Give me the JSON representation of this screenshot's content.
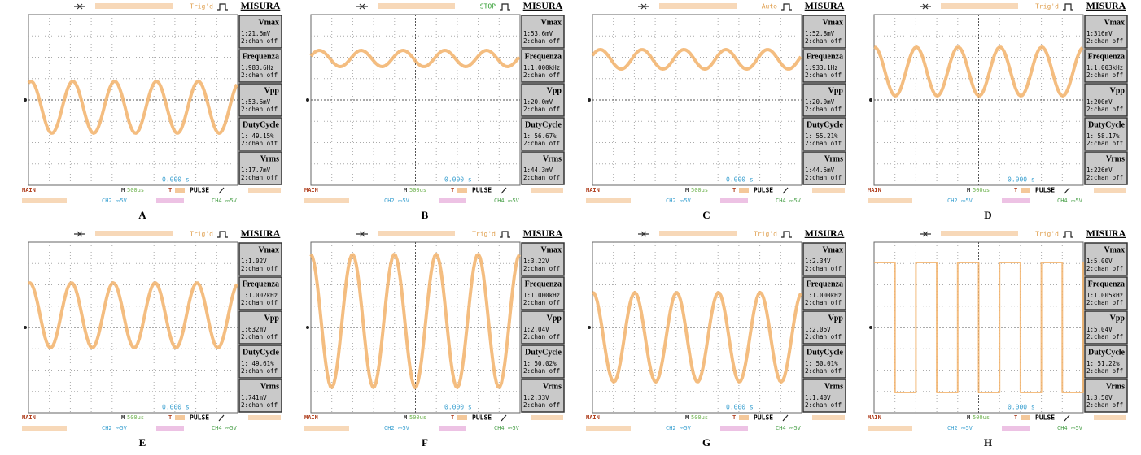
{
  "panels": [
    {
      "label": "A",
      "status": "Trig'd",
      "heading": "MISURA",
      "time": "0.000 s",
      "main": "MAIN",
      "timebase_icon": "M",
      "timebase": "500us",
      "trigger": "T",
      "trigger_mode": "PULSE",
      "ch2": "CH2 ⎓5V",
      "ch4": "CH4 ⎓5V",
      "measurements": [
        {
          "name": "Vmax",
          "ch1": "1:21.6mV",
          "ch2": "2:chan off"
        },
        {
          "name": "Frequenza",
          "ch1": "1:983.6Hz",
          "ch2": "2:chan off"
        },
        {
          "name": "Vpp",
          "ch1": "1:53.6mV",
          "ch2": "2:chan off"
        },
        {
          "name": "DutyCycle",
          "ch1": "1: 49.15%",
          "ch2": "2:chan off"
        },
        {
          "name": "Vrms",
          "ch1": "1:17.7mV",
          "ch2": "2:chan off"
        }
      ]
    },
    {
      "label": "B",
      "status": "STOP",
      "heading": "MISURA",
      "time": "0.000 s",
      "main": "MAIN",
      "timebase_icon": "M",
      "timebase": "500us",
      "trigger": "T",
      "trigger_mode": "PULSE",
      "ch2": "CH2 ⎓5V",
      "ch4": "CH4 ⎓5V",
      "measurements": [
        {
          "name": "Vmax",
          "ch1": "1:53.6mV",
          "ch2": "2:chan off"
        },
        {
          "name": "Frequenza",
          "ch1": "1:1.000kHz",
          "ch2": "2:chan off"
        },
        {
          "name": "Vpp",
          "ch1": "1:20.0mV",
          "ch2": "2:chan off"
        },
        {
          "name": "DutyCycle",
          "ch1": "1: 56.67%",
          "ch2": "2:chan off"
        },
        {
          "name": "Vrms",
          "ch1": "1:44.3mV",
          "ch2": "2:chan off"
        }
      ]
    },
    {
      "label": "C",
      "status": "Auto",
      "heading": "MISURA",
      "time": "0.000 s",
      "main": "MAIN",
      "timebase_icon": "M",
      "timebase": "500us",
      "trigger": "T",
      "trigger_mode": "PULSE",
      "ch2": "CH2 ⎓5V",
      "ch4": "CH4 ⎓5V",
      "measurements": [
        {
          "name": "Vmax",
          "ch1": "1:52.8mV",
          "ch2": "2:chan off"
        },
        {
          "name": "Frequenza",
          "ch1": "1:933.1Hz",
          "ch2": "2:chan off"
        },
        {
          "name": "Vpp",
          "ch1": "1:20.0mV",
          "ch2": "2:chan off"
        },
        {
          "name": "DutyCycle",
          "ch1": "1: 55.21%",
          "ch2": "2:chan off"
        },
        {
          "name": "Vrms",
          "ch1": "1:44.5mV",
          "ch2": "2:chan off"
        }
      ]
    },
    {
      "label": "D",
      "status": "Trig'd",
      "heading": "MISURA",
      "time": "0.000 s",
      "main": "MAIN",
      "timebase_icon": "M",
      "timebase": "500us",
      "trigger": "T",
      "trigger_mode": "PULSE",
      "ch2": "CH2 ⎓5V",
      "ch4": "CH4 ⎓5V",
      "measurements": [
        {
          "name": "Vmax",
          "ch1": "1:316mV",
          "ch2": "2:chan off"
        },
        {
          "name": "Frequenza",
          "ch1": "1:1.003kHz",
          "ch2": "2:chan off"
        },
        {
          "name": "Vpp",
          "ch1": "1:200mV",
          "ch2": "2:chan off"
        },
        {
          "name": "DutyCycle",
          "ch1": "1: 58.17%",
          "ch2": "2:chan off"
        },
        {
          "name": "Vrms",
          "ch1": "1:226mV",
          "ch2": "2:chan off"
        }
      ]
    },
    {
      "label": "E",
      "status": "Trig'd",
      "heading": "MISURA",
      "time": "0.000 s",
      "main": "MAIN",
      "timebase_icon": "M",
      "timebase": "500us",
      "trigger": "T",
      "trigger_mode": "PULSE",
      "ch2": "CH2 ⎓5V",
      "ch4": "CH4 ⎓5V",
      "measurements": [
        {
          "name": "Vmax",
          "ch1": "1:1.02V",
          "ch2": "2:chan off"
        },
        {
          "name": "Frequenza",
          "ch1": "1:1.002kHz",
          "ch2": "2:chan off"
        },
        {
          "name": "Vpp",
          "ch1": "1:632mV",
          "ch2": "2:chan off"
        },
        {
          "name": "DutyCycle",
          "ch1": "1: 49.61%",
          "ch2": "2:chan off"
        },
        {
          "name": "Vrms",
          "ch1": "1:741mV",
          "ch2": "2:chan off"
        }
      ]
    },
    {
      "label": "F",
      "status": "Trig'd",
      "heading": "MISURA",
      "time": "0.000 s",
      "main": "MAIN",
      "timebase_icon": "M",
      "timebase": "500us",
      "trigger": "T",
      "trigger_mode": "PULSE",
      "ch2": "CH2 ⎓5V",
      "ch4": "CH4 ⎓5V",
      "measurements": [
        {
          "name": "Vmax",
          "ch1": "1:3.22V",
          "ch2": "2:chan off"
        },
        {
          "name": "Frequenza",
          "ch1": "1:1.000kHz",
          "ch2": "2:chan off"
        },
        {
          "name": "Vpp",
          "ch1": "1:2.04V",
          "ch2": "2:chan off"
        },
        {
          "name": "DutyCycle",
          "ch1": "1: 50.02%",
          "ch2": "2:chan off"
        },
        {
          "name": "Vrms",
          "ch1": "1:2.33V",
          "ch2": "2:chan off"
        }
      ]
    },
    {
      "label": "G",
      "status": "Trig'd",
      "heading": "MISURA",
      "time": "0.000 s",
      "main": "MAIN",
      "timebase_icon": "M",
      "timebase": "500us",
      "trigger": "T",
      "trigger_mode": "PULSE",
      "ch2": "CH2 ⎓5V",
      "ch4": "CH4 ⎓5V",
      "measurements": [
        {
          "name": "Vmax",
          "ch1": "1:2.34V",
          "ch2": "2:chan off"
        },
        {
          "name": "Frequenza",
          "ch1": "1:1.000kHz",
          "ch2": "2:chan off"
        },
        {
          "name": "Vpp",
          "ch1": "1:2.06V",
          "ch2": "2:chan off"
        },
        {
          "name": "DutyCycle",
          "ch1": "1: 50.01%",
          "ch2": "2:chan off"
        },
        {
          "name": "Vrms",
          "ch1": "1:1.40V",
          "ch2": "2:chan off"
        }
      ]
    },
    {
      "label": "H",
      "status": "Trig'd",
      "heading": "MISURA",
      "time": "0.000 s",
      "main": "MAIN",
      "timebase_icon": "M",
      "timebase": "500us",
      "trigger": "T",
      "trigger_mode": "PULSE",
      "ch2": "CH2 ⎓5V",
      "ch4": "CH4 ⎓5V",
      "measurements": [
        {
          "name": "Vmax",
          "ch1": "1:5.00V",
          "ch2": "2:chan off"
        },
        {
          "name": "Frequenza",
          "ch1": "1:1.005kHz",
          "ch2": "2:chan off"
        },
        {
          "name": "Vpp",
          "ch1": "1:5.04V",
          "ch2": "2:chan off"
        },
        {
          "name": "DutyCycle",
          "ch1": "1: 51.22%",
          "ch2": "2:chan off"
        },
        {
          "name": "Vrms",
          "ch1": "1:3.50V",
          "ch2": "2:chan off"
        }
      ]
    }
  ]
}
